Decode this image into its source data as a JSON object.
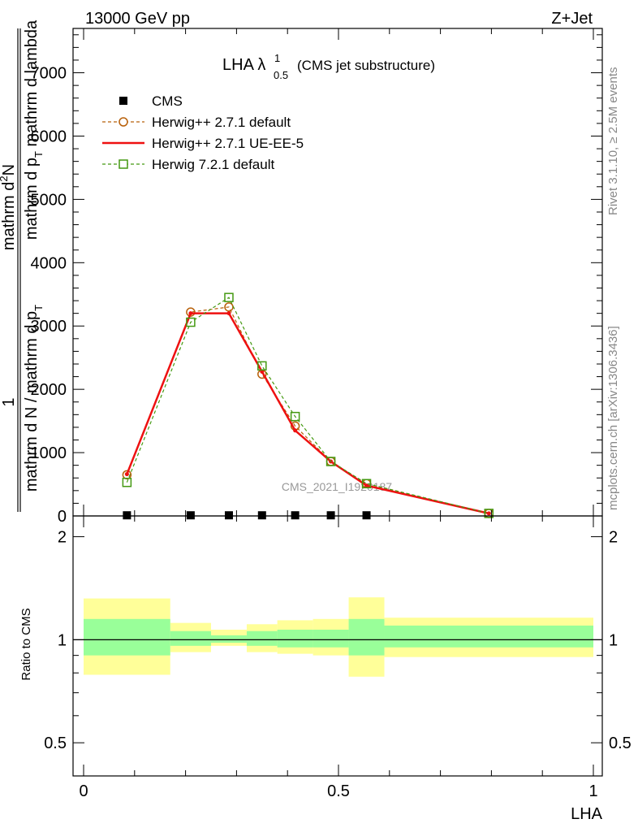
{
  "header": {
    "left": "13000 GeV pp",
    "right": "Z+Jet"
  },
  "title": {
    "main": "LHA λ",
    "superscript": "1",
    "subscript": "0.5",
    "suffix": "(CMS jet substructure)"
  },
  "side_labels": {
    "rivet": "Rivet 3.1.10, ≥ 2.5M events",
    "mcplots": "mcplots.cern.ch [arXiv:1306.3436]"
  },
  "watermark": "CMS_2021_I1920187",
  "ylabel_main": {
    "numerator_one": "1",
    "numerator_frac": "mathrm d",
    "numerator_frac_sup": "2",
    "numerator_frac_rest": "N",
    "denominator": "mathrm d p",
    "denominator_sub": "T",
    "denominator_rest": " mathrm d lambda",
    "fraction_numerator": "1",
    "fraction_denominator": "mathrm d N / mathrm d p",
    "fraction_denominator_sub": "T"
  },
  "legend": [
    {
      "label": "CMS",
      "color": "#000000",
      "marker": "filled-square",
      "line": "none"
    },
    {
      "label": "Herwig++ 2.7.1 default",
      "color": "#b8600a",
      "marker": "open-circle",
      "line": "dashed"
    },
    {
      "label": "Herwig++ 2.7.1 UE-EE-5",
      "color": "#ee1111",
      "marker": "none",
      "line": "solid"
    },
    {
      "label": "Herwig 7.2.1 default",
      "color": "#449911",
      "marker": "open-square",
      "line": "dashed"
    }
  ],
  "chart_data": [
    {
      "type": "line",
      "panel": "main",
      "xlabel": "LHA",
      "ylabel": "1 / (mathrm d N / mathrm d p_T) · mathrm d^2N / (mathrm d p_T mathrm d lambda)",
      "xlim": [
        0,
        1
      ],
      "ylim": [
        0,
        7700
      ],
      "yticks": [
        0,
        1000,
        2000,
        3000,
        4000,
        5000,
        6000,
        7000
      ],
      "yticklabels": [
        "0",
        "1000",
        "2000",
        "3000",
        "4000",
        "5000",
        "6000",
        "7000"
      ],
      "grid": false,
      "legend_position": "top-left",
      "series": [
        {
          "name": "CMS",
          "x": [
            0.085,
            0.21,
            0.285,
            0.35,
            0.415,
            0.485,
            0.555
          ],
          "y": [
            10,
            10,
            10,
            10,
            10,
            10,
            10
          ]
        },
        {
          "name": "Herwig++ 2.7.1 default",
          "x": [
            0.085,
            0.21,
            0.285,
            0.35,
            0.415,
            0.485,
            0.555,
            0.795
          ],
          "y": [
            650,
            3220,
            3300,
            2240,
            1420,
            860,
            510,
            40
          ]
        },
        {
          "name": "Herwig++ 2.7.1 UE-EE-5",
          "x": [
            0.085,
            0.21,
            0.285,
            0.35,
            0.415,
            0.485,
            0.555,
            0.795
          ],
          "y": [
            660,
            3200,
            3200,
            2280,
            1350,
            860,
            480,
            40
          ]
        },
        {
          "name": "Herwig 7.2.1 default",
          "x": [
            0.085,
            0.21,
            0.285,
            0.35,
            0.415,
            0.485,
            0.555,
            0.795
          ],
          "y": [
            530,
            3060,
            3450,
            2370,
            1570,
            860,
            510,
            40
          ]
        }
      ]
    },
    {
      "type": "area",
      "panel": "ratio",
      "xlabel": "LHA",
      "ylabel": "Ratio to CMS",
      "xlim": [
        0,
        1
      ],
      "ylim": [
        0.4,
        2.3
      ],
      "yscale": "log",
      "yticks": [
        0.5,
        1,
        2
      ],
      "yticklabels": [
        "0.5",
        "1",
        "2"
      ],
      "xticks": [
        0,
        0.5,
        1
      ],
      "xticklabels": [
        "0",
        "0.5",
        "1"
      ],
      "reference_line": 1,
      "bins": [
        {
          "x0": 0.0,
          "x1": 0.17,
          "inner": [
            0.9,
            1.15
          ],
          "outer": [
            0.79,
            1.32
          ]
        },
        {
          "x0": 0.17,
          "x1": 0.25,
          "inner": [
            0.96,
            1.06
          ],
          "outer": [
            0.92,
            1.12
          ]
        },
        {
          "x0": 0.25,
          "x1": 0.32,
          "inner": [
            0.98,
            1.03
          ],
          "outer": [
            0.96,
            1.07
          ]
        },
        {
          "x0": 0.32,
          "x1": 0.38,
          "inner": [
            0.96,
            1.06
          ],
          "outer": [
            0.92,
            1.11
          ]
        },
        {
          "x0": 0.38,
          "x1": 0.45,
          "inner": [
            0.95,
            1.07
          ],
          "outer": [
            0.91,
            1.14
          ]
        },
        {
          "x0": 0.45,
          "x1": 0.52,
          "inner": [
            0.95,
            1.07
          ],
          "outer": [
            0.9,
            1.15
          ]
        },
        {
          "x0": 0.52,
          "x1": 0.59,
          "inner": [
            0.9,
            1.15
          ],
          "outer": [
            0.78,
            1.33
          ]
        },
        {
          "x0": 0.59,
          "x1": 1.0,
          "inner": [
            0.95,
            1.1
          ],
          "outer": [
            0.89,
            1.16
          ]
        }
      ],
      "colors": {
        "inner": "#99ff99",
        "outer": "#ffff99",
        "reference": "#000000"
      }
    }
  ]
}
